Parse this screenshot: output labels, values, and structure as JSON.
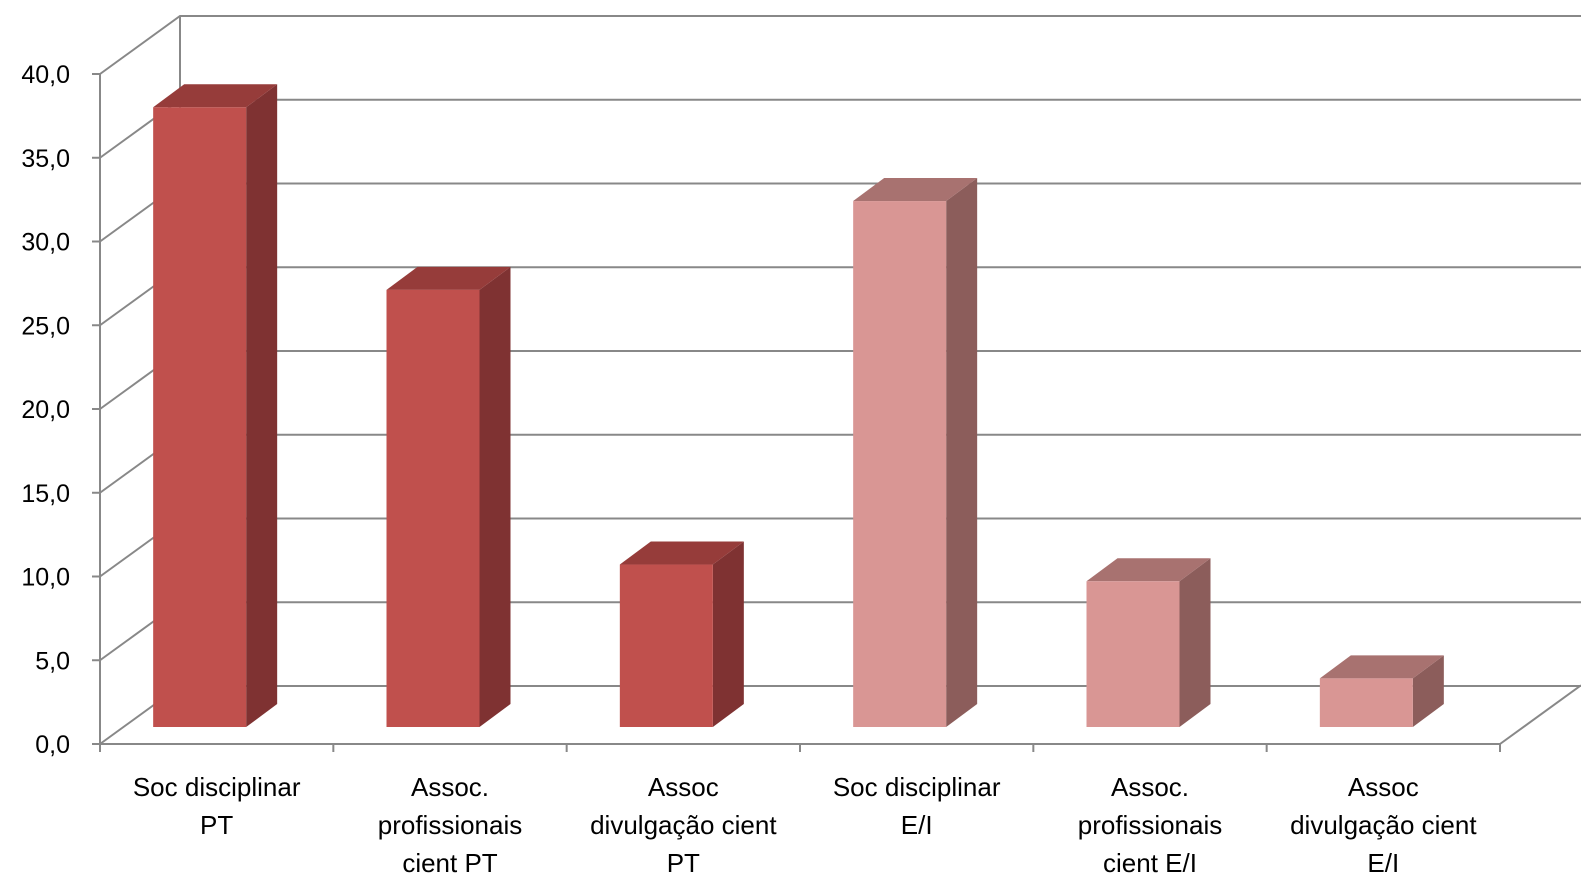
{
  "chart_data": {
    "type": "bar",
    "title": "",
    "xlabel": "",
    "ylabel": "",
    "ylim": [
      0,
      40
    ],
    "yticks": [
      "0,0",
      "5,0",
      "10,0",
      "15,0",
      "20,0",
      "25,0",
      "30,0",
      "35,0",
      "40,0"
    ],
    "grid": true,
    "three_d": true,
    "categories": [
      [
        "Soc disciplinar",
        "PT"
      ],
      [
        "Assoc.",
        "profissionais",
        "cient PT"
      ],
      [
        "Assoc",
        "divulgação cient",
        "PT"
      ],
      [
        "Soc disciplinar",
        "E/I"
      ],
      [
        "Assoc.",
        "profissionais",
        "cient E/I"
      ],
      [
        "Assoc",
        "divulgação cient",
        "E/I"
      ]
    ],
    "values": [
      37.0,
      26.1,
      9.7,
      31.4,
      8.7,
      2.9
    ],
    "colors": {
      "pt_front": "#c0504d",
      "pt_side": "#7f3232",
      "pt_top": "#963c3a",
      "ei_front": "#d99694",
      "ei_side": "#8c5d5b",
      "ei_top": "#a87270",
      "grid": "#888888"
    },
    "bar_color_keys": [
      "pt",
      "pt",
      "pt",
      "ei",
      "ei",
      "ei"
    ]
  }
}
